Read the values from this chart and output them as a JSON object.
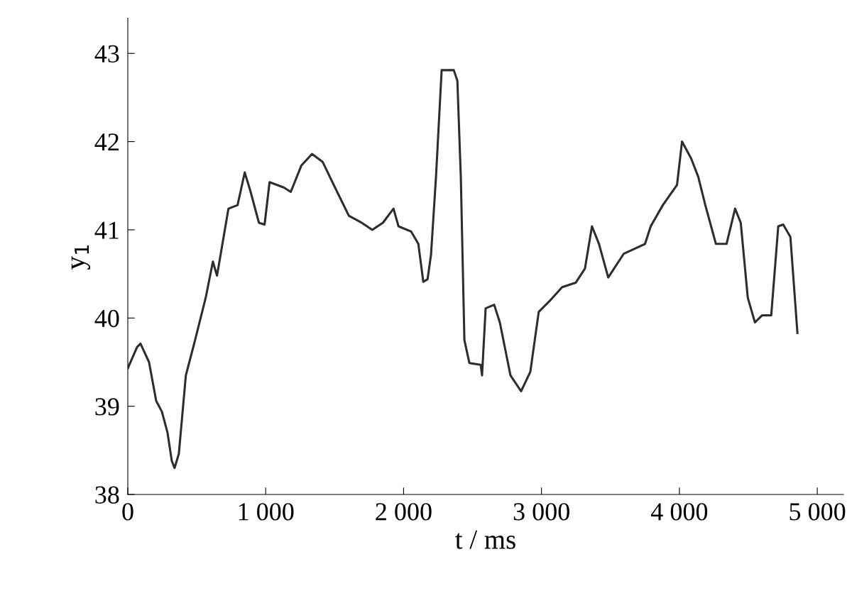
{
  "chart_data": {
    "type": "line",
    "xlabel": "t / ms",
    "ylabel": "y$_{1}$",
    "xlim": [
      0,
      5190
    ],
    "ylim": [
      38,
      43.4
    ],
    "xticks": [
      0,
      {
        "value": 1000,
        "label": "1 000"
      },
      {
        "value": 2000,
        "label": "2 000"
      },
      {
        "value": 3000,
        "label": "3 000"
      },
      {
        "value": 4000,
        "label": "4 000"
      },
      {
        "value": 5000,
        "label": "5 000"
      }
    ],
    "yticks": [
      38,
      39,
      40,
      41,
      42,
      43
    ],
    "grid": false,
    "marker": "none",
    "line_style": "solid",
    "series": [
      {
        "color": "#2a2e33",
        "x": [
          0,
          67,
          92,
          154,
          206,
          247,
          288,
          319,
          339,
          370,
          421,
          488,
          565,
          617,
          647,
          730,
          796,
          848,
          889,
          951,
          992,
          1028,
          1131,
          1182,
          1259,
          1336,
          1413,
          1490,
          1603,
          1696,
          1773,
          1850,
          1927,
          1963,
          2055,
          2107,
          2143,
          2174,
          2199,
          2235,
          2276,
          2364,
          2390,
          2415,
          2441,
          2477,
          2559,
          2569,
          2595,
          2657,
          2698,
          2775,
          2852,
          2919,
          2980,
          3057,
          3150,
          3248,
          3315,
          3366,
          3417,
          3484,
          3597,
          3751,
          3792,
          3880,
          3983,
          4019,
          4085,
          4137,
          4188,
          4265,
          4342,
          4404,
          4445,
          4496,
          4548,
          4599,
          4666,
          4717,
          4753,
          4805,
          4856
        ],
        "values": [
          39.43,
          39.67,
          39.71,
          39.5,
          39.06,
          38.94,
          38.7,
          38.38,
          38.3,
          38.46,
          39.35,
          39.75,
          40.23,
          40.64,
          40.48,
          41.24,
          41.28,
          41.65,
          41.44,
          41.08,
          41.06,
          41.54,
          41.48,
          41.43,
          41.73,
          41.86,
          41.77,
          41.52,
          41.16,
          41.08,
          41.0,
          41.08,
          41.24,
          41.04,
          40.98,
          40.84,
          40.41,
          40.44,
          40.72,
          41.6,
          42.81,
          42.81,
          42.69,
          41.6,
          39.75,
          39.49,
          39.47,
          39.35,
          40.11,
          40.15,
          39.95,
          39.35,
          39.17,
          39.39,
          40.07,
          40.19,
          40.35,
          40.4,
          40.56,
          41.04,
          40.84,
          40.46,
          40.73,
          40.84,
          41.04,
          41.28,
          41.51,
          42.0,
          41.81,
          41.6,
          41.28,
          40.84,
          40.84,
          41.24,
          41.08,
          40.23,
          39.95,
          40.03,
          40.03,
          41.04,
          41.06,
          40.92,
          39.83
        ]
      }
    ]
  }
}
